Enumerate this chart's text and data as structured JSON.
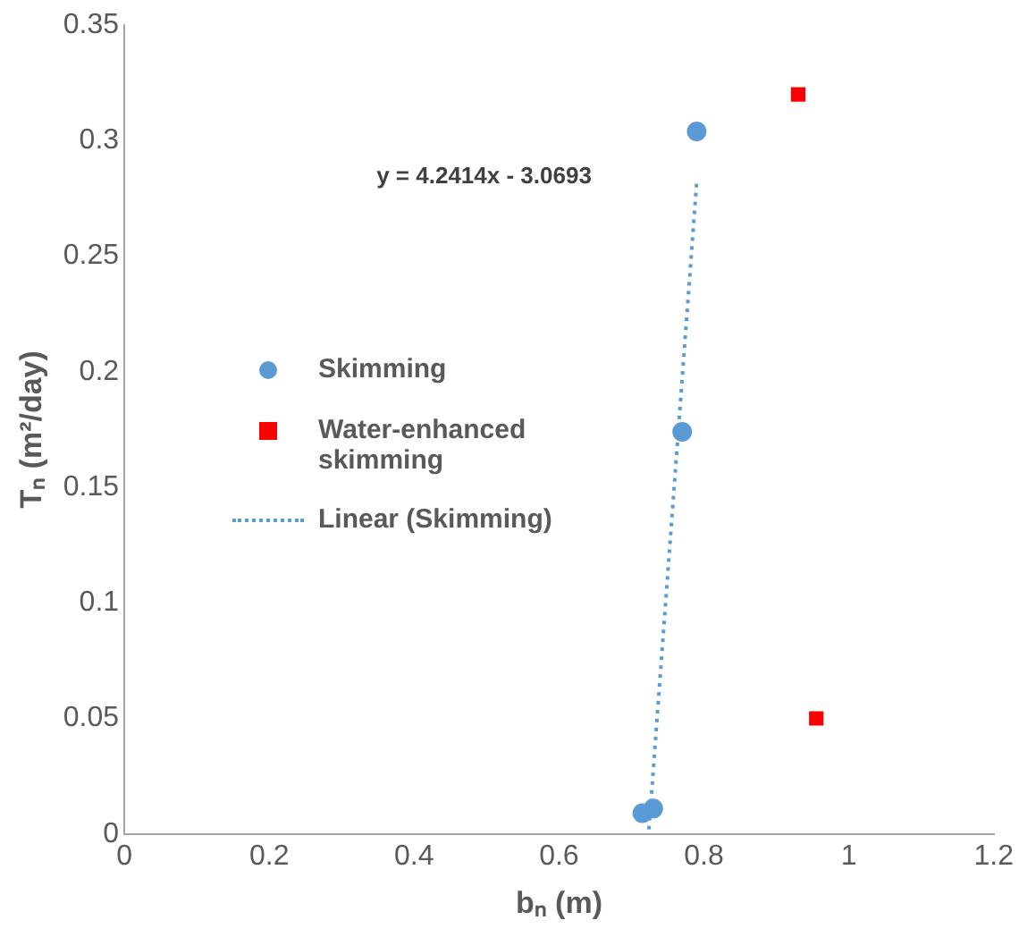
{
  "chart_data": {
    "type": "scatter",
    "xlabel": "bₙ (m)",
    "ylabel": "Tₙ (m²/day)",
    "xlim": [
      0,
      1.2
    ],
    "xticks": [
      0,
      0.2,
      0.4,
      0.6,
      0.8,
      1,
      1.2
    ],
    "ylim": [
      0,
      0.35
    ],
    "yticks": [
      0,
      0.05,
      0.1,
      0.15,
      0.2,
      0.25,
      0.3,
      0.35
    ],
    "grid": false,
    "legend": "left",
    "annotations": [
      "y = 4.2414x - 3.0693"
    ],
    "series": [
      {
        "name": "Skimming",
        "type": "scatter",
        "marker": "circle",
        "color": "#5b9bd5",
        "x": [
          0.715,
          0.73,
          0.77,
          0.79
        ],
        "values": [
          0.009,
          0.011,
          0.174,
          0.304
        ]
      },
      {
        "name": "Water-enhanced skimming",
        "type": "scatter",
        "marker": "square",
        "color": "#ff0000",
        "x": [
          0.93,
          0.955
        ],
        "values": [
          0.32,
          0.05
        ]
      },
      {
        "name": "Linear (Skimming)",
        "type": "line",
        "marker": "none",
        "line_style": "dotted",
        "color": "#5b9bd5",
        "x": [
          0.724,
          0.79
        ],
        "values": [
          0.002,
          0.282
        ]
      }
    ]
  }
}
